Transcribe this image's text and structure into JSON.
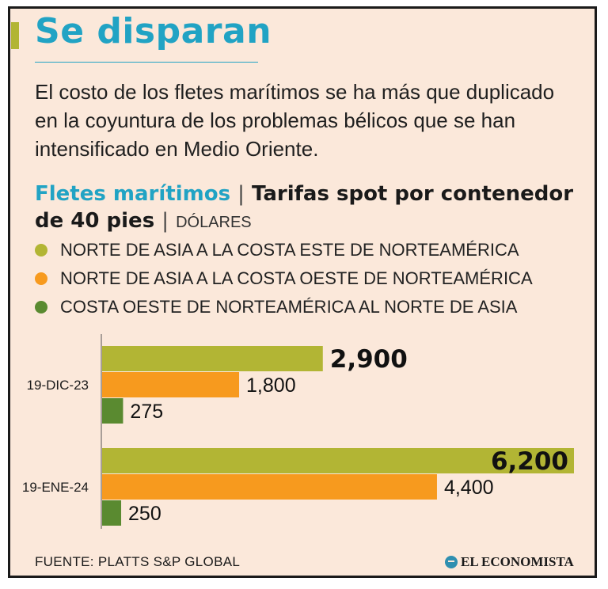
{
  "header": {
    "title": "Se disparan",
    "subtitle": "El costo de los fletes marítimos se ha más que duplicado en la coyuntura de los problemas bélicos que se han intensificado en Medio Oriente."
  },
  "chart_heading": {
    "accent": "Fletes marítimos",
    "separator1": "|",
    "main": "Tarifas spot por contenedor de 40 pies",
    "separator2": "|",
    "unit": "DÓLARES"
  },
  "chart_data": {
    "type": "bar",
    "orientation": "horizontal",
    "categories": [
      "19-DIC-23",
      "19-ENE-24"
    ],
    "series": [
      {
        "name": "NORTE DE ASIA A LA COSTA ESTE DE NORTEAMÉRICA",
        "color": "#b2b534",
        "values": [
          2900,
          6200
        ]
      },
      {
        "name": "NORTE DE ASIA A LA COSTA OESTE DE NORTEAMÉRICA",
        "color": "#f79a1e",
        "values": [
          1800,
          4400
        ]
      },
      {
        "name": "COSTA OESTE DE NORTEAMÉRICA AL NORTE DE ASIA",
        "color": "#5a8a30",
        "values": [
          275,
          250
        ]
      }
    ],
    "data_labels": [
      [
        "2,900",
        "1,800",
        "275"
      ],
      [
        "6,200",
        "4,400",
        "250"
      ]
    ],
    "xlim": [
      0,
      6200
    ],
    "grid": false,
    "legend_position": "top"
  },
  "footer": {
    "source": "FUENTE: PLATTS S&P GLOBAL",
    "brand": "EL ECONOMISTA"
  },
  "colors": {
    "background": "#fbe8da",
    "title": "#21a3c4",
    "accent_bar": "#b2b534"
  }
}
